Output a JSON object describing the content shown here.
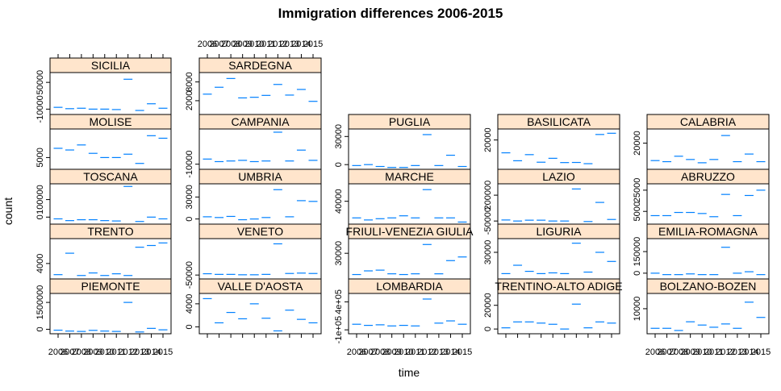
{
  "chart_data": {
    "type": "lattice-line-panels",
    "title": "Immigration differences 2006-2015",
    "xlabel": "time",
    "ylabel": "count",
    "x_ticks_top": [
      "2006",
      "2007",
      "2008",
      "2009",
      "2010",
      "2011",
      "2012",
      "2013",
      "2014",
      "2015"
    ],
    "x_ticks_bottom": [
      "2006",
      "2007",
      "2008",
      "2009",
      "2010",
      "2011",
      "2012",
      "2013",
      "2014",
      "2015"
    ],
    "strip_color": "#ffe5cc",
    "line_color": "#0080ff",
    "years": [
      2006,
      2007,
      2008,
      2009,
      2010,
      2011,
      2012,
      2013,
      2014,
      2015
    ],
    "columns": [
      {
        "panels": [
          {
            "label": "SICILIA",
            "yticks": [
              "50000",
              "-10000"
            ],
            "ytick_values": [
              50000,
              -10000
            ],
            "ylim": [
              -22000,
              72000
            ],
            "values": [
              -6000,
              -9000,
              -8000,
              -10000,
              -10000,
              -11000,
              57000,
              -13000,
              2000,
              -8000
            ]
          },
          {
            "label": "MOLISE",
            "yticks": [
              "5000"
            ],
            "ytick_values": [
              5000
            ],
            "ylim": [
              3600,
              8400
            ],
            "values": [
              6100,
              5900,
              6500,
              5500,
              5000,
              5000,
              5400,
              4300,
              7600,
              7300
            ]
          },
          {
            "label": "TOSCANA",
            "yticks": [
              "100000",
              "0"
            ],
            "ytick_values": [
              100000,
              0
            ],
            "ylim": [
              -40000,
              190000
            ],
            "values": [
              -10000,
              -20000,
              -15000,
              -15000,
              -20000,
              -22000,
              175000,
              -25000,
              0,
              -10000
            ]
          },
          {
            "label": "TRENTO",
            "yticks": [
              "4000"
            ],
            "ytick_values": [
              4000
            ],
            "ylim": [
              2200,
              6900
            ],
            "values": [
              2700,
              5200,
              2600,
              2900,
              2600,
              2800,
              2600,
              5900,
              6100,
              6400
            ]
          },
          {
            "label": "PIEMONTE",
            "yticks": [
              "1500000",
              "0"
            ],
            "ytick_values": [
              1500000,
              0
            ],
            "ylim": [
              -250000,
              2000000
            ],
            "values": [
              -50000,
              -100000,
              -120000,
              -60000,
              -100000,
              -120000,
              1500000,
              -150000,
              50000,
              -30000
            ]
          }
        ]
      },
      {
        "panels": [
          {
            "label": "SARDEGNA",
            "yticks": [
              "8000",
              "2000"
            ],
            "ytick_values": [
              8000,
              2000
            ],
            "ylim": [
              -2400,
              11000
            ],
            "values": [
              4100,
              6300,
              9100,
              2900,
              3100,
              3700,
              7200,
              3800,
              5600,
              1800
            ]
          },
          {
            "label": "CAMPANIA",
            "yticks": [
              "-10000"
            ],
            "ytick_values": [
              -10000
            ],
            "ylim": [
              -18000,
              45000
            ],
            "values": [
              -2000,
              -6000,
              -5000,
              -4000,
              -6000,
              -5000,
              40000,
              -5000,
              12000,
              -4000
            ]
          },
          {
            "label": "UMBRIA",
            "yticks": [
              "30000",
              "0"
            ],
            "ytick_values": [
              30000,
              0
            ],
            "ylim": [
              -7000,
              48000
            ],
            "values": [
              3000,
              2000,
              3500,
              -1000,
              0,
              2000,
              40000,
              3000,
              25000,
              24000
            ]
          },
          {
            "label": "VENETO",
            "yticks": [
              "-50000"
            ],
            "ytick_values": [
              -50000
            ],
            "ylim": [
              -80000,
              230000
            ],
            "values": [
              -40000,
              -45000,
              -45000,
              -48000,
              -48000,
              -45000,
              190000,
              -38000,
              -35000,
              -38000
            ]
          },
          {
            "label": "VALLE D'AOSTA",
            "yticks": [
              "4000",
              "0"
            ],
            "ytick_values": [
              4000,
              0
            ],
            "ylim": [
              -1200,
              5800
            ],
            "values": [
              4900,
              700,
              2500,
              1400,
              4000,
              1500,
              -700,
              2900,
              1300,
              700
            ]
          }
        ]
      },
      {
        "panels": [
          {
            "label": "PUGLIA",
            "yticks": [
              "30000",
              "0"
            ],
            "ytick_values": [
              30000,
              0
            ],
            "ylim": [
              -5000,
              38000
            ],
            "values": [
              -1000,
              0,
              -2000,
              -3000,
              -3000,
              -1000,
              32000,
              -1000,
              10000,
              -2000
            ]
          },
          {
            "label": "MARCHE",
            "yticks": [
              "40000"
            ],
            "ytick_values": [
              40000
            ],
            "ylim": [
              -15000,
              82000
            ],
            "values": [
              0,
              -5000,
              -2000,
              0,
              5000,
              0,
              68000,
              0,
              0,
              -10000
            ]
          },
          {
            "label": "FRIULI-VENEZIA GIULIA",
            "yticks": [
              "30000"
            ],
            "ytick_values": [
              30000
            ],
            "ylim": [
              -5000,
              50000
            ],
            "values": [
              1000,
              6000,
              7000,
              2000,
              1000,
              2000,
              42000,
              2000,
              20000,
              25000
            ]
          },
          {
            "label": "LOMBARDIA",
            "yticks": [
              "4e+05",
              "-1e+05"
            ],
            "ytick_values": [
              400000,
              -100000
            ],
            "ylim": [
              -170000,
              550000
            ],
            "values": [
              0,
              -20000,
              -10000,
              -30000,
              -20000,
              -30000,
              450000,
              20000,
              60000,
              0
            ]
          }
        ]
      },
      {
        "panels": [
          {
            "label": "BASILICATA",
            "yticks": [
              "20000"
            ],
            "ytick_values": [
              20000
            ],
            "ylim": [
              -4000,
              29000
            ],
            "values": [
              9500,
              3000,
              8000,
              1800,
              5000,
              1500,
              1600,
              600,
              24500,
              25500
            ]
          },
          {
            "label": "LAZIO",
            "yticks": [
              "200000",
              "-50000"
            ],
            "ytick_values": [
              200000,
              -50000
            ],
            "ylim": [
              -80000,
              310000
            ],
            "values": [
              -40000,
              -50000,
              -42000,
              -42000,
              -50000,
              -50000,
              260000,
              -55000,
              130000,
              -35000
            ]
          },
          {
            "label": "LIGURIA",
            "yticks": [
              "30000"
            ],
            "ytick_values": [
              30000
            ],
            "ylim": [
              -5000,
              48000
            ],
            "values": [
              2000,
              13000,
              5000,
              2000,
              3000,
              2000,
              42000,
              4000,
              30000,
              18000
            ]
          },
          {
            "label": "TRENTINO-ALTO ADIGE",
            "yticks": [
              "20000",
              "0"
            ],
            "ytick_values": [
              20000,
              0
            ],
            "ylim": [
              -4000,
              30000
            ],
            "values": [
              1000,
              6000,
              6000,
              5000,
              4000,
              0,
              21000,
              1000,
              6000,
              5000
            ]
          }
        ]
      },
      {
        "panels": [
          {
            "label": "CALABRIA",
            "yticks": [
              "20000"
            ],
            "ytick_values": [
              20000
            ],
            "ylim": [
              -4000,
              33000
            ],
            "values": [
              4000,
              3000,
              8000,
              5000,
              2000,
              5000,
              27000,
              3000,
              10000,
              3000
            ]
          },
          {
            "label": "ABRUZZO",
            "yticks": [
              "25000",
              "5000"
            ],
            "ytick_values": [
              25000,
              5000
            ],
            "ylim": [
              -7000,
              31000
            ],
            "values": [
              1000,
              1000,
              4000,
              4000,
              3000,
              0,
              21000,
              1000,
              20000,
              25000
            ]
          },
          {
            "label": "EMILIA-ROMAGNA",
            "yticks": [
              "150000",
              "0"
            ],
            "ytick_values": [
              150000,
              0
            ],
            "ylim": [
              -40000,
              240000
            ],
            "values": [
              0,
              -10000,
              -10000,
              -5000,
              -10000,
              -10000,
              180000,
              0,
              10000,
              -10000
            ]
          },
          {
            "label": "BOLZANO-BOZEN",
            "yticks": [
              "10000"
            ],
            "ytick_values": [
              10000
            ],
            "ylim": [
              -1500,
              17000
            ],
            "values": [
              1000,
              1000,
              0,
              4000,
              2500,
              1500,
              3000,
              1000,
              13000,
              6000
            ]
          }
        ]
      }
    ]
  }
}
